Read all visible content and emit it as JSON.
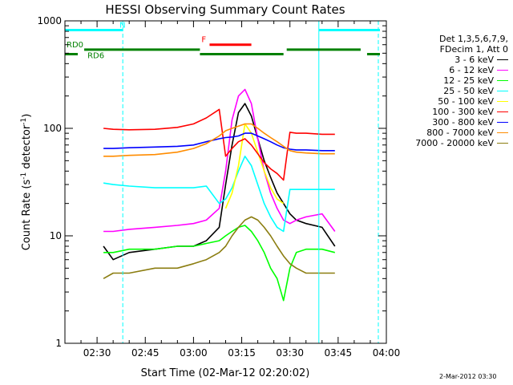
{
  "chart_data": {
    "type": "line",
    "title": "HESSI Observing Summary Count Rates",
    "xlabel": "Start Time (02-Mar-12 02:20:02)",
    "ylabel": "Count Rate (s",
    "ylabel_sup1": "-1",
    "ylabel_mid": " detector",
    "ylabel_sup2": "-1",
    "ylabel_end": ")",
    "yscale": "log",
    "ylim": [
      1,
      1000
    ],
    "y_ticks": [
      1,
      10,
      100,
      1000
    ],
    "y_tick_labels": [
      "1",
      "10",
      "100",
      "1000"
    ],
    "x_range": [
      "02:20",
      "04:00"
    ],
    "x_tick_labels": [
      "02:30",
      "02:45",
      "03:00",
      "03:15",
      "03:30",
      "03:45",
      "04:00"
    ],
    "x_ticks_min": [
      30,
      45,
      60,
      75,
      90,
      105,
      120
    ],
    "legend_header": [
      "Det 1,3,5,6,7,9,",
      "FDecim 1, Att 0"
    ],
    "series": [
      {
        "name": "3 - 6 keV",
        "color": "#000000",
        "t": [
          22,
          28,
          32,
          35,
          40,
          48,
          55,
          60,
          64,
          68,
          70,
          72,
          74,
          76,
          78,
          80,
          82,
          84,
          86,
          88,
          90,
          92,
          95,
          100,
          104
        ],
        "v": [
          null,
          null,
          8,
          6,
          7,
          7.5,
          8,
          8,
          9,
          12,
          30,
          70,
          140,
          170,
          130,
          80,
          50,
          35,
          25,
          20,
          16,
          14,
          13,
          12,
          8
        ]
      },
      {
        "name": "6 - 12 keV",
        "color": "#ff00ff",
        "t": [
          22,
          28,
          32,
          35,
          40,
          48,
          55,
          60,
          64,
          68,
          70,
          72,
          74,
          76,
          78,
          80,
          82,
          84,
          86,
          88,
          90,
          92,
          95,
          100,
          104
        ],
        "v": [
          null,
          null,
          11,
          11,
          11.5,
          12,
          12.5,
          13,
          14,
          18,
          40,
          120,
          200,
          230,
          170,
          80,
          40,
          25,
          18,
          14,
          13,
          14,
          15,
          16,
          11
        ]
      },
      {
        "name": "12 - 25 keV",
        "color": "#00ff00",
        "t": [
          22,
          28,
          32,
          35,
          40,
          48,
          55,
          60,
          64,
          68,
          70,
          72,
          74,
          76,
          78,
          80,
          82,
          84,
          86,
          88,
          90,
          92,
          95,
          100,
          104
        ],
        "v": [
          null,
          null,
          7,
          7,
          7.5,
          7.5,
          8,
          8,
          8.5,
          9,
          10,
          11,
          12,
          12.5,
          11,
          9,
          7,
          5,
          4,
          2.5,
          5,
          7,
          7.5,
          7.5,
          7
        ]
      },
      {
        "name": "25 - 50 keV",
        "color": "#00ffff",
        "t": [
          22,
          28,
          32,
          35,
          40,
          48,
          55,
          60,
          64,
          68,
          70,
          72,
          74,
          76,
          78,
          80,
          82,
          84,
          86,
          88,
          90,
          92,
          95,
          100,
          104
        ],
        "v": [
          null,
          null,
          31,
          30,
          29,
          28,
          28,
          28,
          29,
          20,
          22,
          28,
          40,
          55,
          45,
          30,
          20,
          15,
          12,
          11,
          27,
          27,
          27,
          27,
          27
        ]
      },
      {
        "name": "50 - 100 keV",
        "color": "#ffff00",
        "t": [
          70,
          72,
          74,
          76,
          78,
          80,
          82,
          84,
          86,
          88
        ],
        "v": [
          18,
          25,
          45,
          110,
          90,
          60,
          40,
          28,
          22,
          20
        ]
      },
      {
        "name": "100 - 300 keV",
        "color": "#ff0000",
        "t": [
          22,
          28,
          32,
          35,
          40,
          48,
          55,
          60,
          64,
          68,
          70,
          72,
          74,
          76,
          78,
          80,
          82,
          84,
          86,
          88,
          90,
          92,
          95,
          100,
          104
        ],
        "v": [
          null,
          null,
          100,
          98,
          97,
          98,
          102,
          110,
          125,
          150,
          55,
          65,
          75,
          80,
          70,
          58,
          48,
          42,
          38,
          33,
          92,
          90,
          90,
          88,
          88
        ]
      },
      {
        "name": "300 - 800 keV",
        "color": "#0000ff",
        "t": [
          22,
          28,
          32,
          35,
          40,
          48,
          55,
          60,
          64,
          68,
          70,
          72,
          74,
          76,
          78,
          80,
          82,
          84,
          86,
          88,
          90,
          92,
          95,
          100,
          104
        ],
        "v": [
          null,
          null,
          65,
          65,
          66,
          67,
          68,
          70,
          75,
          80,
          82,
          83,
          85,
          90,
          90,
          85,
          80,
          75,
          70,
          66,
          64,
          63,
          63,
          62,
          62
        ]
      },
      {
        "name": "800 - 7000 keV",
        "color": "#ff8c00",
        "t": [
          22,
          28,
          32,
          35,
          40,
          48,
          55,
          60,
          64,
          68,
          70,
          72,
          74,
          76,
          78,
          80,
          82,
          84,
          86,
          88,
          90,
          92,
          95,
          100,
          104
        ],
        "v": [
          null,
          null,
          55,
          55,
          56,
          57,
          60,
          65,
          72,
          85,
          95,
          100,
          105,
          110,
          110,
          100,
          90,
          82,
          75,
          68,
          62,
          60,
          59,
          58,
          58
        ]
      },
      {
        "name": "7000 - 20000 keV",
        "color": "#8b7d10",
        "t": [
          22,
          28,
          32,
          35,
          40,
          48,
          55,
          60,
          64,
          68,
          70,
          72,
          74,
          76,
          78,
          80,
          82,
          84,
          86,
          88,
          90,
          92,
          95,
          100,
          104
        ],
        "v": [
          null,
          null,
          4,
          4.5,
          4.5,
          5,
          5,
          5.5,
          6,
          7,
          8,
          10,
          12,
          14,
          15,
          14,
          12,
          10,
          8,
          6.5,
          5.5,
          5,
          4.5,
          4.5,
          4.5
        ]
      }
    ],
    "annotations": [
      {
        "label": "N",
        "color": "#00ffff",
        "y": 820,
        "t_start": 20,
        "t_end": 38,
        "label_at": 37
      },
      {
        "label": "",
        "color": "#00ffff",
        "y": 820,
        "t_start": 99,
        "t_end": 118
      },
      {
        "label": "F",
        "color": "#ff0000",
        "y": 600,
        "t_start": 65,
        "t_end": 78,
        "label_at": 62.5
      },
      {
        "label": "RD0",
        "color": "#008000",
        "y": 540,
        "t_start": 26,
        "t_end": 62,
        "label_at": 20.5
      },
      {
        "label": "",
        "color": "#008000",
        "y": 540,
        "t_start": 89,
        "t_end": 112
      },
      {
        "label": "RD6",
        "color": "#008000",
        "y": 490,
        "t_start": 20,
        "t_end": 24,
        "label_at": 27
      },
      {
        "label": "",
        "color": "#008000",
        "y": 490,
        "t_start": 62,
        "t_end": 88
      },
      {
        "label": "",
        "color": "#008000",
        "y": 490,
        "t_start": 114,
        "t_end": 118
      }
    ],
    "vertical_lines": [
      {
        "t": 20,
        "color": "#00ffff",
        "style": "solid"
      },
      {
        "t": 38,
        "color": "#00ffff",
        "style": "dashed"
      },
      {
        "t": 99,
        "color": "#00ffff",
        "style": "solid"
      },
      {
        "t": 117.5,
        "color": "#00ffff",
        "style": "dashed"
      }
    ],
    "grid": false,
    "legend_position": "right"
  },
  "footer": {
    "timestamp": "2-Mar-2012 03:30"
  }
}
